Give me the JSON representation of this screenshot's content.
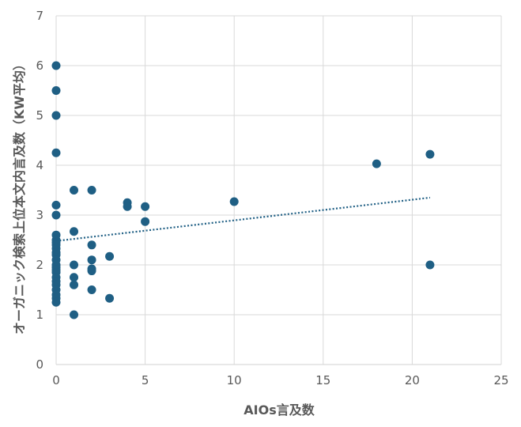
{
  "chart_data": {
    "type": "scatter",
    "title": "",
    "xlabel": "AIOs言及数",
    "ylabel": "オーガニック検索上位本文内言及数（KW平均）",
    "xlim": [
      0,
      25
    ],
    "ylim": [
      0,
      7
    ],
    "xticks": [
      "0",
      "5",
      "10",
      "15",
      "20",
      "25"
    ],
    "yticks": [
      "0",
      "1",
      "2",
      "3",
      "4",
      "5",
      "6",
      "7"
    ],
    "grid": "vertical and horizontal major gridlines",
    "legend": "none",
    "colors": {
      "points": "#1f5f84",
      "trendline": "#1f5f84",
      "grid": "#d9d9d9",
      "text": "#595959"
    },
    "trendline": {
      "type": "linear",
      "style": "dotted",
      "x_range": [
        0,
        21
      ],
      "y_start": 2.48,
      "y_end": 3.35
    },
    "series": [
      {
        "points": [
          [
            0,
            6.0
          ],
          [
            0,
            5.5
          ],
          [
            0,
            5.0
          ],
          [
            0,
            4.25
          ],
          [
            0,
            3.2
          ],
          [
            0,
            3.0
          ],
          [
            0,
            2.6
          ],
          [
            0,
            2.5
          ],
          [
            0,
            2.45
          ],
          [
            0,
            2.4
          ],
          [
            0,
            2.33
          ],
          [
            0,
            2.25
          ],
          [
            0,
            2.2
          ],
          [
            0,
            2.1
          ],
          [
            0,
            2.0
          ],
          [
            0,
            1.95
          ],
          [
            0,
            1.9
          ],
          [
            0,
            1.85
          ],
          [
            0,
            1.75
          ],
          [
            0,
            1.67
          ],
          [
            0,
            1.6
          ],
          [
            0,
            1.5
          ],
          [
            0,
            1.4
          ],
          [
            0,
            1.33
          ],
          [
            0,
            1.25
          ],
          [
            1,
            3.5
          ],
          [
            1,
            2.67
          ],
          [
            1,
            2.0
          ],
          [
            1,
            1.75
          ],
          [
            1,
            1.6
          ],
          [
            1,
            1.0
          ],
          [
            2,
            3.5
          ],
          [
            2,
            2.4
          ],
          [
            2,
            2.1
          ],
          [
            2,
            1.92
          ],
          [
            2,
            1.88
          ],
          [
            2,
            1.5
          ],
          [
            3,
            2.17
          ],
          [
            3,
            1.33
          ],
          [
            4,
            3.25
          ],
          [
            4,
            3.17
          ],
          [
            5,
            3.17
          ],
          [
            5,
            2.87
          ],
          [
            10,
            3.27
          ],
          [
            18,
            4.03
          ],
          [
            21,
            4.22
          ],
          [
            21,
            2.0
          ]
        ]
      }
    ]
  }
}
